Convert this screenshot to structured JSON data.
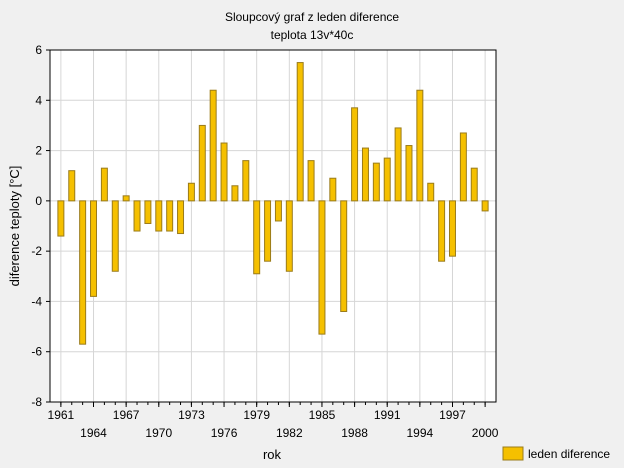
{
  "chart_data": {
    "type": "bar",
    "title": "Sloupcový graf z leden diference",
    "subtitle": "teplota 13v*40c",
    "xlabel": "rok",
    "ylabel": "diference teploty [°C]",
    "ylim": [
      -8,
      6
    ],
    "yticks": [
      "6",
      "4",
      "2",
      "0",
      "-2",
      "-4",
      "-6",
      "-8"
    ],
    "xlim": [
      1960,
      2001
    ],
    "xtick_labels": [
      "1961",
      "1964",
      "1967",
      "1970",
      "1973",
      "1976",
      "1979",
      "1982",
      "1985",
      "1988",
      "1991",
      "1994",
      "1997",
      "2000"
    ],
    "grid": true,
    "legend_position": "bottom-right",
    "colors": {
      "bar_fill": "#f5c000",
      "bar_stroke": "#9a7b1a",
      "plot_bg": "#ffffff",
      "grid": "#d6d6d6"
    },
    "series": [
      {
        "name": "leden diference",
        "x": [
          1961,
          1962,
          1963,
          1964,
          1965,
          1966,
          1967,
          1968,
          1969,
          1970,
          1971,
          1972,
          1973,
          1974,
          1975,
          1976,
          1977,
          1978,
          1979,
          1980,
          1981,
          1982,
          1983,
          1984,
          1985,
          1986,
          1987,
          1988,
          1989,
          1990,
          1991,
          1992,
          1993,
          1994,
          1995,
          1996,
          1997,
          1998,
          1999,
          2000
        ],
        "values": [
          -1.4,
          1.2,
          -5.7,
          -3.8,
          1.3,
          -2.8,
          0.2,
          -1.2,
          -0.9,
          -1.2,
          -1.2,
          -1.3,
          0.7,
          3.0,
          4.4,
          2.3,
          0.6,
          1.6,
          -2.9,
          -2.4,
          -0.8,
          -2.8,
          5.5,
          1.6,
          -5.3,
          0.9,
          -4.4,
          3.7,
          2.1,
          1.5,
          1.7,
          2.9,
          2.2,
          4.4,
          0.7,
          -2.4,
          -2.2,
          2.7,
          1.3,
          -0.4
        ]
      }
    ]
  }
}
